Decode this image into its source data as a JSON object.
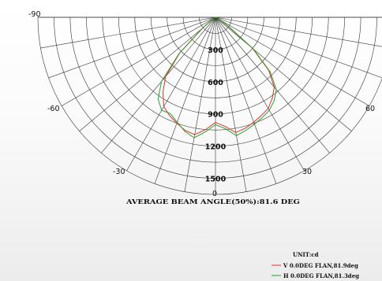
{
  "chart_data": {
    "type": "polar",
    "angle_ticks": [
      -90,
      -60,
      -30,
      0,
      30,
      60
    ],
    "angle_tick_labels": [
      "-90",
      "-60",
      "-30",
      "0",
      "30",
      "60"
    ],
    "radial_ticks": [
      300,
      600,
      900,
      1200,
      1500
    ],
    "radial_tick_labels": [
      "300",
      "600",
      "900",
      "1200",
      "1500"
    ],
    "rlim": [
      0,
      1650
    ],
    "angle_grid_step_deg": 10,
    "grid": true,
    "beam_angle_text": "AVERAGE BEAM ANGLE(50%):81.6 DEG",
    "unit_text": "UNIT:cd",
    "legend_position": "bottom-right",
    "series": [
      {
        "name": "V 0.0DEG FLAN,81.9deg",
        "color": "#e03030",
        "angles": [
          -90,
          -80,
          -70,
          -60,
          -55,
          -50,
          -45,
          -40,
          -35,
          -30,
          -25,
          -20,
          -15,
          -10,
          -5,
          0,
          5,
          10,
          15,
          20,
          25,
          30,
          35,
          40,
          45,
          50,
          55,
          60,
          70,
          80,
          90
        ],
        "values": [
          0,
          0,
          0,
          0,
          40,
          160,
          470,
          720,
          850,
          960,
          1010,
          1050,
          1090,
          1110,
          1050,
          980,
          1020,
          1090,
          1070,
          1040,
          1010,
          980,
          920,
          850,
          700,
          450,
          140,
          30,
          0,
          0,
          0
        ]
      },
      {
        "name": "H 0.0DEG FLAN,81.3deg",
        "color": "#2aa02a",
        "angles": [
          -90,
          -80,
          -70,
          -60,
          -55,
          -50,
          -45,
          -40,
          -35,
          -30,
          -25,
          -20,
          -15,
          -10,
          -5,
          0,
          5,
          10,
          15,
          20,
          25,
          30,
          35,
          40,
          45,
          50,
          55,
          60,
          70,
          80,
          90
        ],
        "values": [
          0,
          0,
          0,
          0,
          30,
          150,
          480,
          780,
          930,
          1000,
          990,
          1040,
          1100,
          1140,
          1070,
          1000,
          1040,
          1120,
          1090,
          1060,
          1030,
          1000,
          950,
          880,
          720,
          460,
          150,
          30,
          0,
          0,
          0
        ]
      }
    ]
  }
}
